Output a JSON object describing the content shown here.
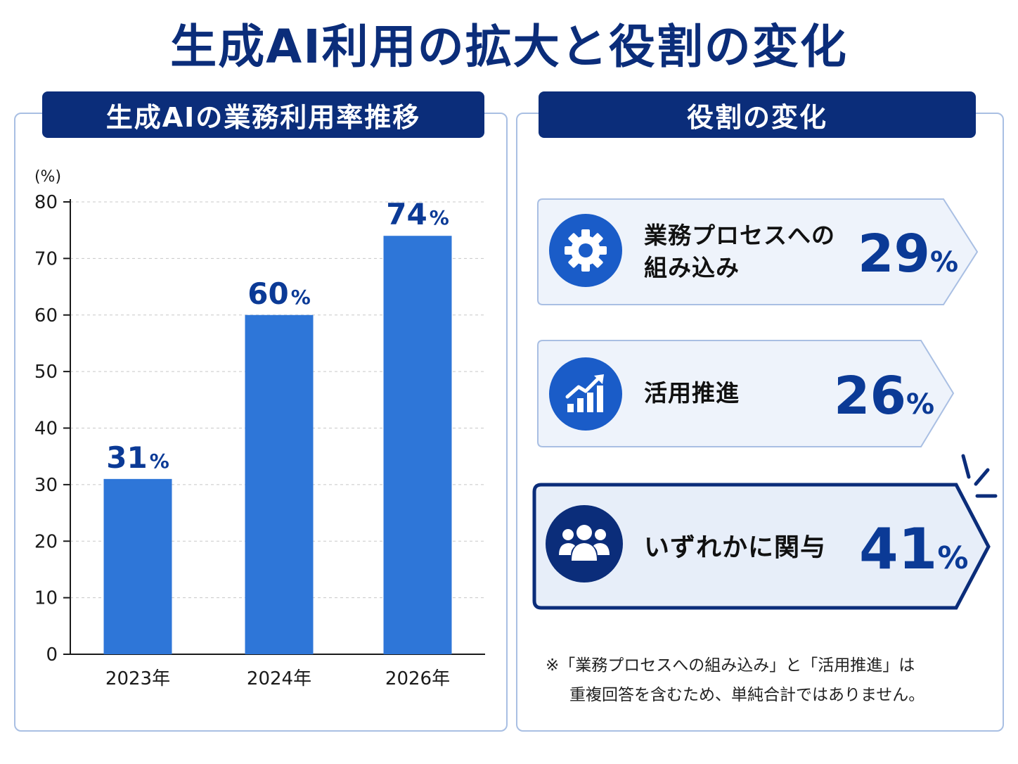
{
  "title": "生成AI利用の拡大と役割の変化",
  "left_panel": {
    "header": "生成AIの業務利用率推移"
  },
  "right_panel": {
    "header": "役割の変化",
    "items": [
      {
        "label_line1": "業務プロセスへの",
        "label_line2": "組み込み",
        "value": "29",
        "unit": "%",
        "icon": "gear-icon",
        "highlight": false
      },
      {
        "label_line1": "活用推進",
        "label_line2": "",
        "value": "26",
        "unit": "%",
        "icon": "growth-chart-icon",
        "highlight": false
      },
      {
        "label_line1": "いずれかに関与",
        "label_line2": "",
        "value": "41",
        "unit": "%",
        "icon": "people-group-icon",
        "highlight": true
      }
    ],
    "note_line1": "※「業務プロセスへの組み込み」と「活用推進」は",
    "note_line2": "重複回答を含むため、単純合計ではありません。"
  },
  "colors": {
    "navy": "#0b2d7a",
    "bar_blue": "#2e76d8",
    "label_blue": "#0b3a96",
    "card_bg": "#eef3fb",
    "border": "#a9bfe3"
  },
  "chart_data": {
    "type": "bar",
    "title": "生成AIの業務利用率推移",
    "ylabel": "(%)",
    "xlabel": "",
    "categories": [
      "2023年",
      "2024年",
      "2026年"
    ],
    "values": [
      31,
      60,
      74
    ],
    "value_labels": [
      "31",
      "60",
      "74"
    ],
    "value_unit": "%",
    "ylim": [
      0,
      80
    ],
    "yticks": [
      0,
      10,
      20,
      30,
      40,
      50,
      60,
      70,
      80
    ],
    "grid": true
  }
}
